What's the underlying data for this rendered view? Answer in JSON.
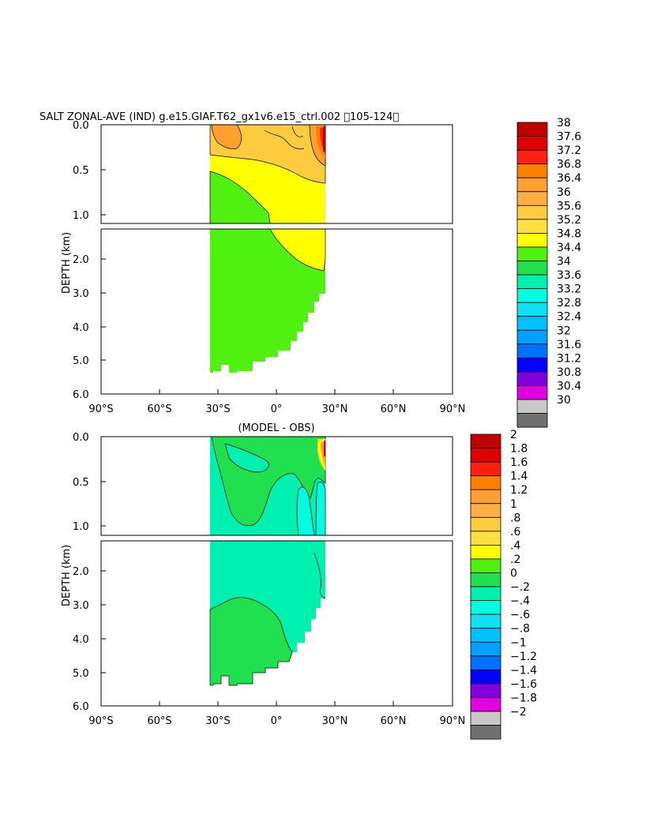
{
  "chart_data": [
    {
      "type": "heatmap",
      "title": "SALT ZONAL-AVE (IND) g.e15.GIAF.T62_gx1v6.e15_ctrl.002 \u0000105-124\u0000",
      "ylabel": "DEPTH (km)",
      "x_ticks": [
        "90°S",
        "60°S",
        "30°S",
        "0°",
        "30°N",
        "60°N",
        "90°N"
      ],
      "xlim": [
        -90,
        90
      ],
      "y_ticks_upper": [
        "0.0",
        "0.5",
        "1.0"
      ],
      "y_ticks_lower": [
        "2.0",
        "3.0",
        "4.0",
        "5.0",
        "6.0"
      ],
      "ylim": [
        6.0,
        0.0
      ],
      "colorbar": {
        "labels": [
          "38",
          "37.6",
          "37.2",
          "36.8",
          "36.4",
          "36",
          "35.6",
          "35.2",
          "34.8",
          "34.4",
          "34",
          "33.6",
          "33.2",
          "32.8",
          "32.4",
          "32",
          "31.6",
          "31.2",
          "30.8",
          "30.4",
          "30"
        ],
        "colors": [
          "#c00000",
          "#de0000",
          "#ff2010",
          "#ff8000",
          "#ffa030",
          "#ffb040",
          "#ffcc40",
          "#ffe040",
          "#ffff00",
          "#50f010",
          "#20e050",
          "#00f0b0",
          "#00ffe0",
          "#10e0f0",
          "#00c0ff",
          "#00a0ff",
          "#0070ff",
          "#0000ff",
          "#8000e0",
          "#e000e0",
          "#c8c8c8",
          "#707070"
        ]
      },
      "regions": {
        "data_lon_range": [
          -34,
          26
        ],
        "green_band_value_range": [
          34.4,
          34.8
        ],
        "yellow_band_value_range": [
          34.8,
          35.2
        ],
        "max_surface_value": 38
      }
    },
    {
      "type": "heatmap",
      "title": "(MODEL - OBS)",
      "ylabel": "DEPTH (km)",
      "x_ticks": [
        "90°S",
        "60°S",
        "30°S",
        "0°",
        "30°N",
        "60°N",
        "90°N"
      ],
      "xlim": [
        -90,
        90
      ],
      "y_ticks_upper": [
        "0.0",
        "0.5",
        "1.0"
      ],
      "y_ticks_lower": [
        "2.0",
        "3.0",
        "4.0",
        "5.0",
        "6.0"
      ],
      "ylim": [
        6.0,
        0.0
      ],
      "colorbar": {
        "labels": [
          "2",
          "1.8",
          "1.6",
          "1.4",
          "1.2",
          "1",
          ".8",
          ".6",
          ".4",
          ".2",
          "0",
          "−.2",
          "−.4",
          "−.6",
          "−.8",
          "−1",
          "−1.2",
          "−1.4",
          "−1.6",
          "−1.8",
          "−2"
        ],
        "colors": [
          "#c00000",
          "#de0000",
          "#ff2010",
          "#ff8000",
          "#ffa030",
          "#ffb040",
          "#ffcc40",
          "#ffe040",
          "#ffff00",
          "#50f010",
          "#20e050",
          "#00f0b0",
          "#00ffe0",
          "#10e0f0",
          "#00c0ff",
          "#00a0ff",
          "#0070ff",
          "#0000ff",
          "#8000e0",
          "#e000e0",
          "#c8c8c8",
          "#707070"
        ]
      },
      "regions": {
        "data_lon_range": [
          -34,
          26
        ],
        "cyan_band_value_range": [
          -0.2,
          0
        ],
        "green_band_value_range": [
          0,
          0.2
        ]
      }
    }
  ]
}
